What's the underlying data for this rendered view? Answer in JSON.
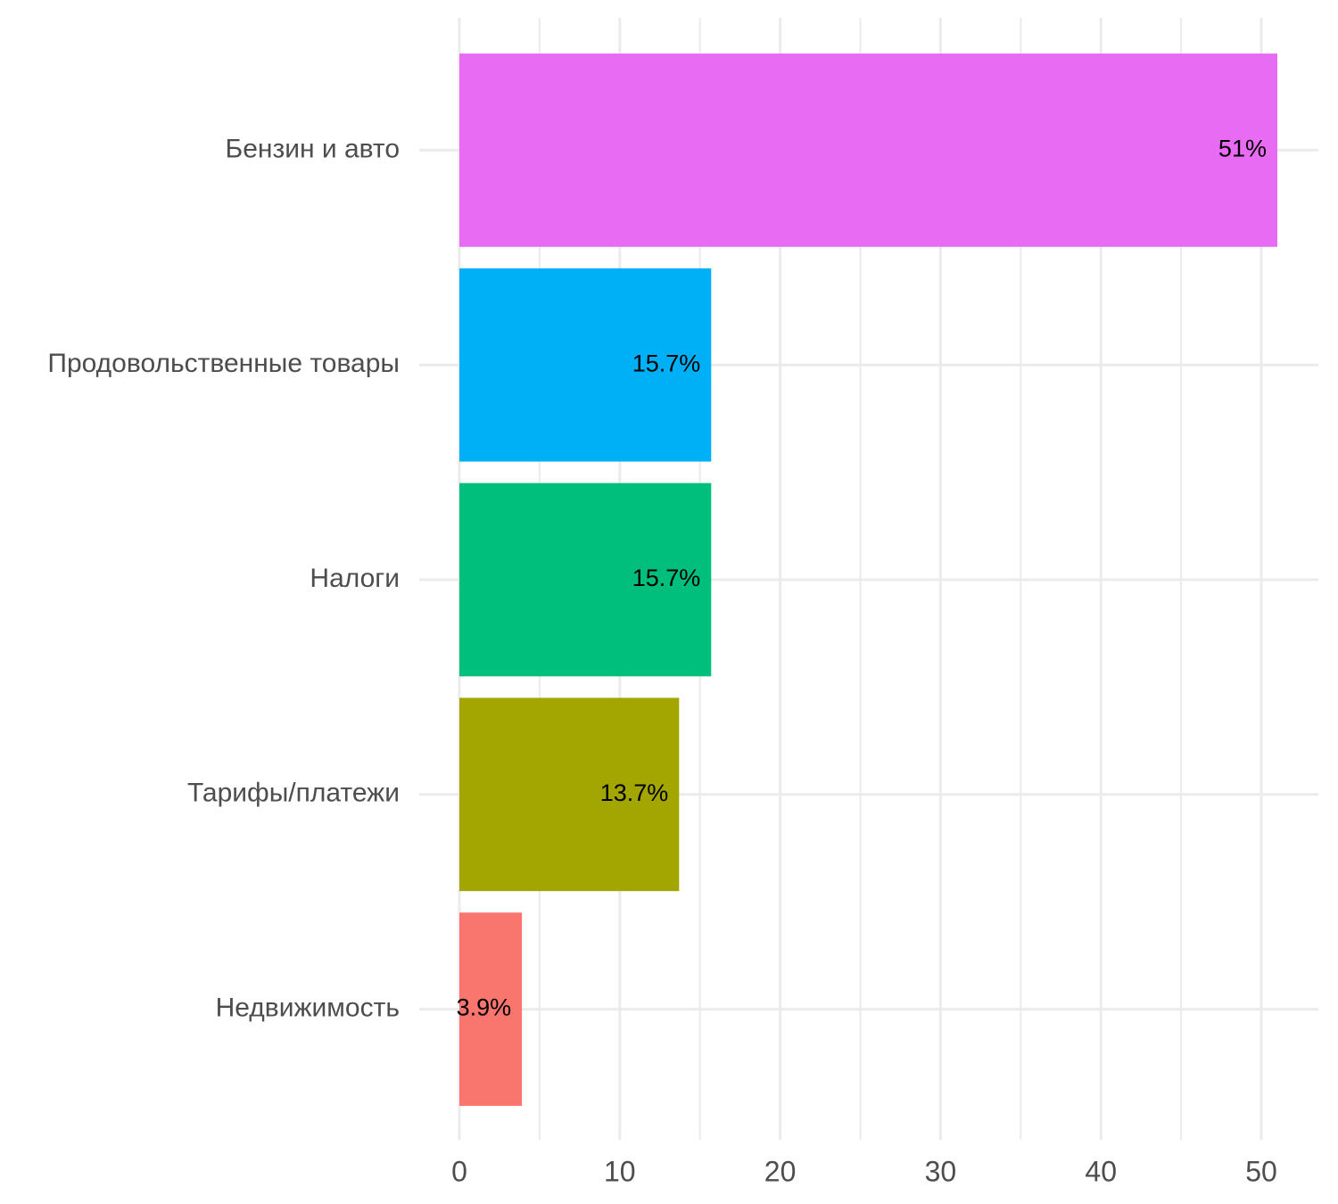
{
  "chart_data": {
    "type": "bar",
    "orientation": "horizontal",
    "title": "",
    "xlabel": "",
    "ylabel": "",
    "categories": [
      "Бензин и авто",
      "Продовольственные товары",
      "Налоги",
      "Тарифы/платежи",
      "Недвижимость"
    ],
    "values": [
      51,
      15.7,
      15.7,
      13.7,
      3.9
    ],
    "data_labels": [
      "51%",
      "15.7%",
      "15.7%",
      "13.7%",
      "3.9%"
    ],
    "colors": [
      "#E76BF3",
      "#00B0F6",
      "#00BF7D",
      "#A3A500",
      "#F8766D"
    ],
    "xlim": [
      0,
      53.5
    ],
    "x_ticks": [
      0,
      10,
      20,
      30,
      40,
      50
    ],
    "x_tick_labels": [
      "0",
      "10",
      "20",
      "30",
      "40",
      "50"
    ],
    "grid": true,
    "grid_color": "#ebebeb",
    "legend": "none"
  }
}
